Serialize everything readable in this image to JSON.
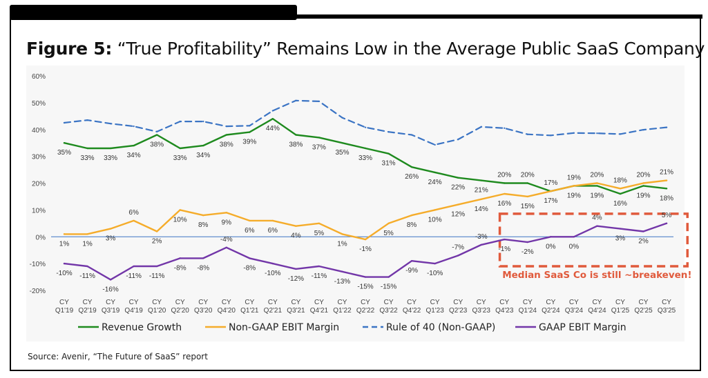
{
  "title_bold": "Figure 5:",
  "title_rest": "“True Profitability” Remains Low in the Average Public SaaS Company",
  "source": "Source: Avenir, “The Future of SaaS” report",
  "annotation": "Median SaaS Co is still ~breakeven!",
  "colors": {
    "revenue": "#1e8a1e",
    "nongaap": "#f5ac2a",
    "rule40": "#3b74c4",
    "gaap": "#7236a8",
    "annotation": "#e05a3c",
    "zero": "#3b74c4"
  },
  "chart_data": {
    "type": "line",
    "title": "“True Profitability” Remains Low in the Average Public SaaS Company",
    "ylim": [
      -20,
      60
    ],
    "yticks": [
      "60%",
      "50%",
      "40%",
      "30%",
      "20%",
      "10%",
      "0%",
      "-10%",
      "-20%"
    ],
    "ytick_values": [
      60,
      50,
      40,
      30,
      20,
      10,
      0,
      -10,
      -20
    ],
    "categories": [
      "Q1'19",
      "Q2'19",
      "Q3'19",
      "Q4'19",
      "Q1'20",
      "Q2'20",
      "Q3'20",
      "Q4'20",
      "Q1'21",
      "Q2'21",
      "Q3'21",
      "Q4'21",
      "Q1'22",
      "Q2'22",
      "Q3'22",
      "Q4'22",
      "Q1'23",
      "Q2'23",
      "Q3'23",
      "Q4'23",
      "Q1'24",
      "Q2'24",
      "Q3'24",
      "Q4'24",
      "Q1'25",
      "Q2'25",
      "Q3'25"
    ],
    "category_prefix": "CY",
    "series": [
      {
        "name": "Revenue Growth",
        "key": "revenue",
        "values": [
          35,
          33,
          33,
          34,
          38,
          33,
          34,
          38,
          39,
          44,
          38,
          37,
          35,
          33,
          31,
          26,
          24,
          22,
          21,
          20,
          20,
          17,
          19,
          19,
          16,
          19,
          18
        ],
        "labels": [
          "35%",
          "33%",
          "33%",
          "34%",
          "38%",
          "33%",
          "34%",
          "38%",
          "39%",
          "44%",
          "38%",
          "37%",
          "35%",
          "33%",
          "31%",
          "26%",
          "24%",
          "22%",
          "21%",
          "20%",
          "20%",
          "17%",
          "19%",
          "19%",
          "16%",
          "19%",
          "18%"
        ],
        "label_pos": [
          "below",
          "below",
          "below",
          "below",
          "below",
          "below",
          "below",
          "below",
          "below",
          "below",
          "below",
          "below",
          "below",
          "below",
          "below",
          "below",
          "below",
          "below",
          "below",
          "above",
          "above",
          "below",
          "below",
          "below",
          "below",
          "below",
          "below"
        ]
      },
      {
        "name": "Non-GAAP EBIT Margin",
        "key": "nongaap",
        "values": [
          1,
          1,
          3,
          6,
          2,
          10,
          8,
          9,
          6,
          6,
          4,
          5,
          1,
          -1,
          5,
          8,
          10,
          12,
          14,
          16,
          15,
          17,
          19,
          20,
          18,
          20,
          21
        ],
        "labels": [
          "1%",
          "1%",
          "3%",
          "6%",
          "2%",
          "10%",
          "8%",
          "9%",
          "6%",
          "6%",
          "4%",
          "5%",
          "1%",
          "-1%",
          "5%",
          "8%",
          "10%",
          "12%",
          "14%",
          "16%",
          "15%",
          "17%",
          "19%",
          "20%",
          "18%",
          "20%",
          "21%"
        ],
        "label_pos": [
          "below",
          "below",
          "below",
          "above",
          "below",
          "below",
          "below",
          "below",
          "below",
          "below",
          "below",
          "below",
          "below",
          "below",
          "below",
          "below",
          "below",
          "below",
          "below",
          "below",
          "below",
          "above",
          "above",
          "above",
          "above",
          "above",
          "above"
        ]
      },
      {
        "name": "Rule of 40 (Non-GAAP)",
        "key": "rule40",
        "dashed": true,
        "values": [
          42.5,
          43.5,
          42.2,
          41.2,
          39.2,
          43,
          43,
          41.2,
          41.4,
          47,
          50.8,
          50.5,
          44.4,
          40.8,
          39.1,
          38,
          34.3,
          36.3,
          41,
          40.5,
          38.2,
          37.8,
          38.7,
          38.6,
          38.3,
          39.9,
          40.8
        ],
        "labels": []
      },
      {
        "name": "GAAP EBIT Margin",
        "key": "gaap",
        "values": [
          -10,
          -11,
          -16,
          -11,
          -11,
          -8,
          -8,
          -4,
          -8,
          -10,
          -12,
          -11,
          -13,
          -15,
          -15,
          -9,
          -10,
          -7,
          -3,
          -1,
          -2,
          0,
          0,
          4,
          3,
          2,
          5
        ],
        "labels": [
          "-10%",
          "-11%",
          "-16%",
          "-11%",
          "-11%",
          "-8%",
          "-8%",
          "-4%",
          "-8%",
          "-10%",
          "-12%",
          "-11%",
          "-13%",
          "-15%",
          "-15%",
          "-9%",
          "-10%",
          "-7%",
          "-3%",
          "-1%",
          "-2%",
          "0%",
          "0%",
          "4%",
          "3%",
          "2%",
          "5%"
        ],
        "label_pos": [
          "below",
          "below",
          "below",
          "below",
          "below",
          "below",
          "below",
          "above",
          "below",
          "below",
          "below",
          "below",
          "below",
          "below",
          "below",
          "below",
          "below",
          "above",
          "above",
          "below",
          "below",
          "below",
          "below",
          "above",
          "below",
          "below",
          "above"
        ]
      }
    ],
    "legend_position": "bottom"
  }
}
